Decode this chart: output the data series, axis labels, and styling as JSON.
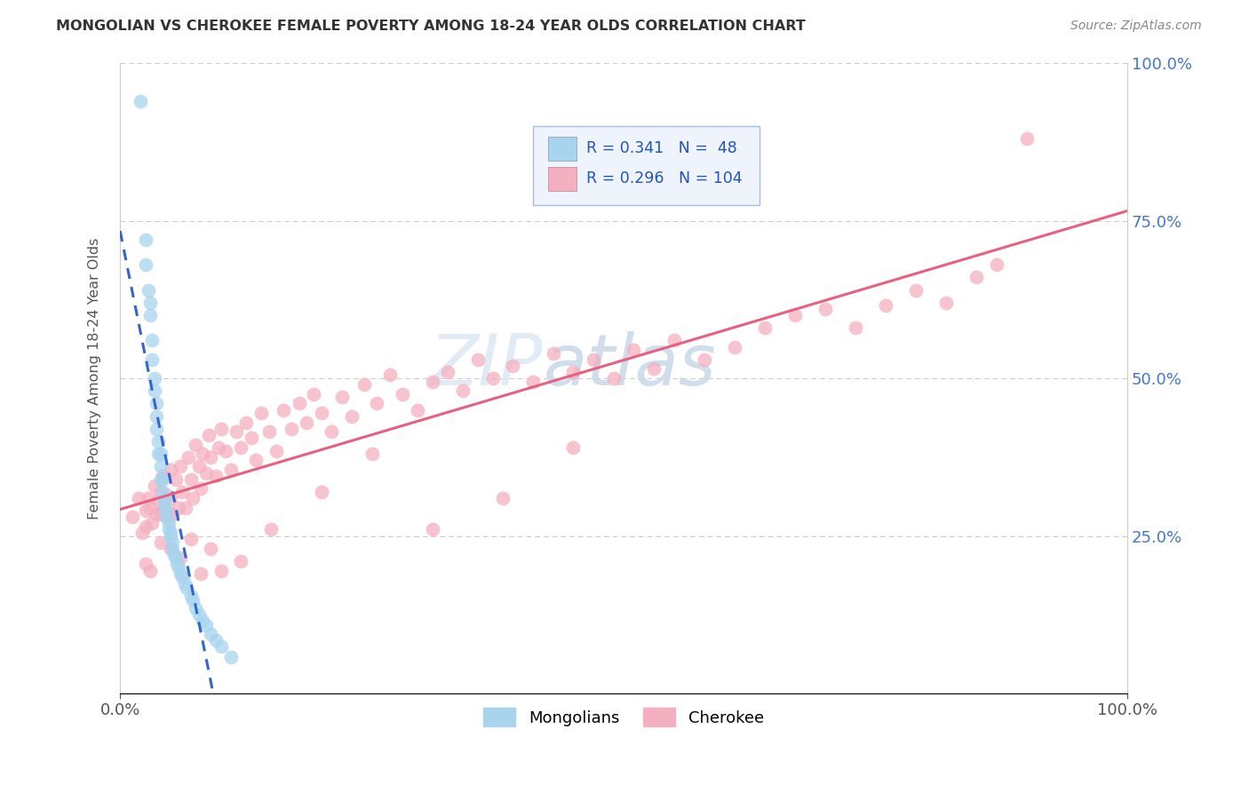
{
  "title": "MONGOLIAN VS CHEROKEE FEMALE POVERTY AMONG 18-24 YEAR OLDS CORRELATION CHART",
  "source": "Source: ZipAtlas.com",
  "ylabel": "Female Poverty Among 18-24 Year Olds",
  "xlim": [
    0,
    1.0
  ],
  "ylim": [
    0,
    1.0
  ],
  "mongolian_R": 0.341,
  "mongolian_N": 48,
  "cherokee_R": 0.296,
  "cherokee_N": 104,
  "mongolian_color": "#a8d4ee",
  "cherokee_color": "#f4afc0",
  "mongolian_line_color": "#3366cc",
  "cherokee_line_color": "#e86080",
  "watermark_zip": "ZIP",
  "watermark_atlas": "atlas",
  "mong_x": [
    0.02,
    0.025,
    0.025,
    0.028,
    0.03,
    0.03,
    0.032,
    0.032,
    0.034,
    0.034,
    0.036,
    0.036,
    0.036,
    0.038,
    0.038,
    0.04,
    0.04,
    0.04,
    0.042,
    0.042,
    0.044,
    0.044,
    0.046,
    0.046,
    0.048,
    0.048,
    0.05,
    0.05,
    0.052,
    0.052,
    0.054,
    0.055,
    0.056,
    0.058,
    0.06,
    0.062,
    0.064,
    0.066,
    0.07,
    0.072,
    0.075,
    0.078,
    0.082,
    0.085,
    0.09,
    0.095,
    0.1,
    0.11
  ],
  "mong_y": [
    0.94,
    0.72,
    0.68,
    0.64,
    0.62,
    0.6,
    0.56,
    0.53,
    0.5,
    0.48,
    0.46,
    0.44,
    0.42,
    0.4,
    0.38,
    0.38,
    0.36,
    0.34,
    0.34,
    0.32,
    0.31,
    0.3,
    0.29,
    0.28,
    0.27,
    0.26,
    0.255,
    0.25,
    0.24,
    0.23,
    0.22,
    0.215,
    0.205,
    0.2,
    0.19,
    0.185,
    0.175,
    0.168,
    0.155,
    0.148,
    0.135,
    0.125,
    0.115,
    0.108,
    0.095,
    0.085,
    0.075,
    0.058
  ],
  "cher_x": [
    0.012,
    0.018,
    0.022,
    0.025,
    0.025,
    0.028,
    0.03,
    0.032,
    0.034,
    0.036,
    0.038,
    0.04,
    0.04,
    0.042,
    0.044,
    0.046,
    0.048,
    0.05,
    0.05,
    0.052,
    0.055,
    0.058,
    0.06,
    0.062,
    0.065,
    0.068,
    0.07,
    0.072,
    0.075,
    0.078,
    0.08,
    0.082,
    0.085,
    0.088,
    0.09,
    0.095,
    0.098,
    0.1,
    0.105,
    0.11,
    0.115,
    0.12,
    0.125,
    0.13,
    0.135,
    0.14,
    0.148,
    0.155,
    0.162,
    0.17,
    0.178,
    0.185,
    0.192,
    0.2,
    0.21,
    0.22,
    0.23,
    0.242,
    0.255,
    0.268,
    0.28,
    0.295,
    0.31,
    0.325,
    0.34,
    0.355,
    0.37,
    0.39,
    0.41,
    0.43,
    0.45,
    0.47,
    0.49,
    0.51,
    0.53,
    0.55,
    0.58,
    0.61,
    0.64,
    0.67,
    0.7,
    0.73,
    0.76,
    0.79,
    0.82,
    0.85,
    0.87,
    0.025,
    0.03,
    0.04,
    0.05,
    0.06,
    0.07,
    0.08,
    0.09,
    0.1,
    0.12,
    0.15,
    0.2,
    0.25,
    0.31,
    0.38,
    0.45,
    0.9
  ],
  "cher_y": [
    0.28,
    0.31,
    0.255,
    0.29,
    0.265,
    0.31,
    0.295,
    0.27,
    0.33,
    0.285,
    0.305,
    0.32,
    0.285,
    0.345,
    0.295,
    0.315,
    0.28,
    0.355,
    0.31,
    0.285,
    0.34,
    0.295,
    0.36,
    0.32,
    0.295,
    0.375,
    0.34,
    0.31,
    0.395,
    0.36,
    0.325,
    0.38,
    0.35,
    0.41,
    0.375,
    0.345,
    0.39,
    0.42,
    0.385,
    0.355,
    0.415,
    0.39,
    0.43,
    0.405,
    0.37,
    0.445,
    0.415,
    0.385,
    0.45,
    0.42,
    0.46,
    0.43,
    0.475,
    0.445,
    0.415,
    0.47,
    0.44,
    0.49,
    0.46,
    0.505,
    0.475,
    0.45,
    0.495,
    0.51,
    0.48,
    0.53,
    0.5,
    0.52,
    0.495,
    0.54,
    0.51,
    0.53,
    0.5,
    0.545,
    0.515,
    0.56,
    0.53,
    0.55,
    0.58,
    0.6,
    0.61,
    0.58,
    0.615,
    0.64,
    0.62,
    0.66,
    0.68,
    0.205,
    0.195,
    0.24,
    0.23,
    0.215,
    0.245,
    0.19,
    0.23,
    0.195,
    0.21,
    0.26,
    0.32,
    0.38,
    0.26,
    0.31,
    0.39,
    0.88
  ]
}
